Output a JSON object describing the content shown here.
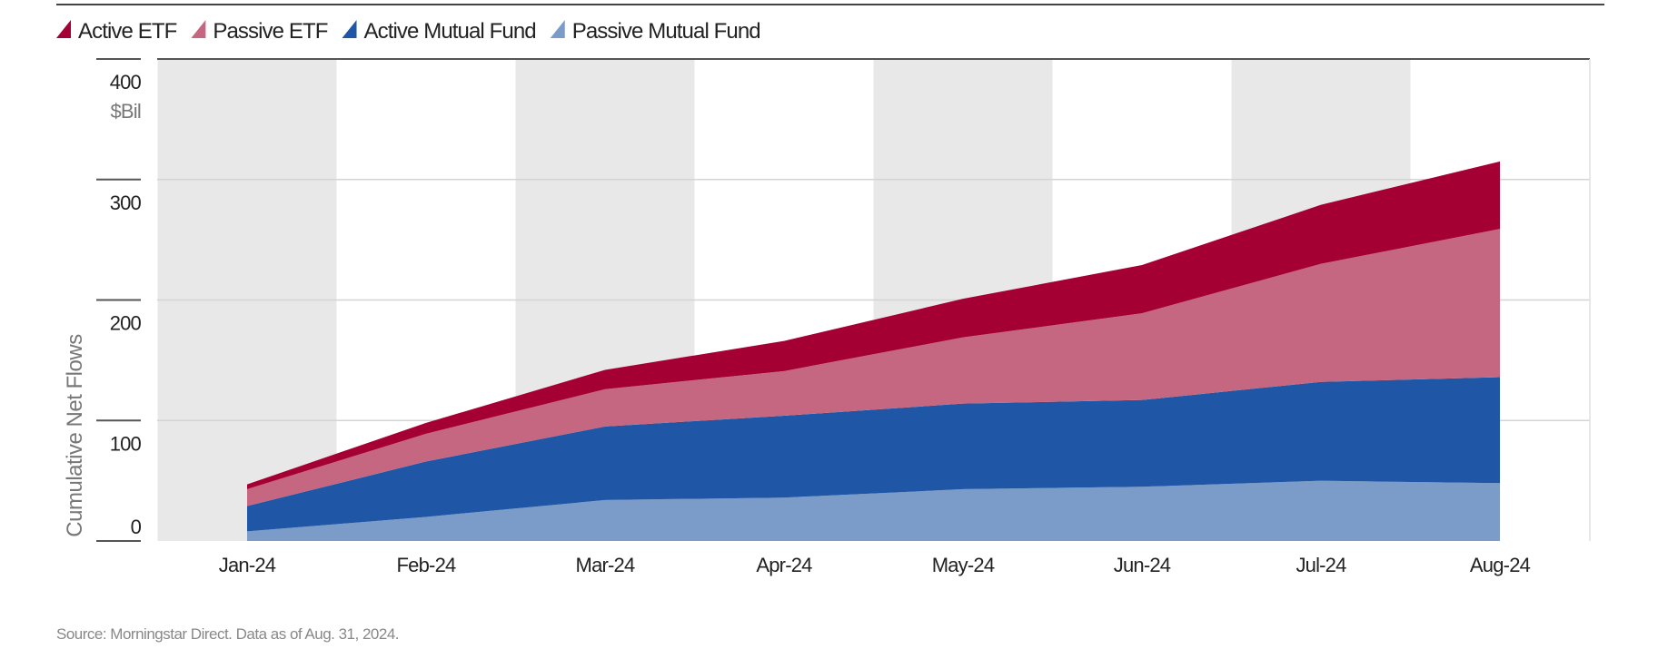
{
  "chart_data": {
    "type": "area",
    "stacked": true,
    "categories": [
      "Jan-24",
      "Feb-24",
      "Mar-24",
      "Apr-24",
      "May-24",
      "Jun-24",
      "Jul-24",
      "Aug-24"
    ],
    "series": [
      {
        "name": "Passive Mutual Fund",
        "color": "#7B9BC8",
        "values": [
          8,
          20,
          34,
          36,
          43,
          45,
          50,
          48
        ]
      },
      {
        "name": "Active Mutual Fund",
        "color": "#1F56A6",
        "values": [
          21,
          46,
          61,
          68,
          71,
          72,
          82,
          88
        ]
      },
      {
        "name": "Passive ETF",
        "color": "#C66781",
        "values": [
          14,
          23,
          31,
          37,
          55,
          72,
          98,
          123
        ]
      },
      {
        "name": "Active ETF",
        "color": "#A50034",
        "values": [
          4,
          9,
          16,
          25,
          32,
          40,
          49,
          56
        ]
      }
    ],
    "legend_order": [
      "Active ETF",
      "Passive ETF",
      "Active Mutual Fund",
      "Passive Mutual Fund"
    ],
    "ylabel": "Cumulative Net Flows",
    "yunit": "$Bil",
    "ylim": [
      0,
      400
    ],
    "yticks": [
      "0",
      "100",
      "200",
      "300",
      "400"
    ],
    "grid": true,
    "alternating_bands_color": "#E8E8E8",
    "legend_position": "top-left",
    "source": "Source: Morningstar Direct. Data as of Aug. 31, 2024."
  }
}
